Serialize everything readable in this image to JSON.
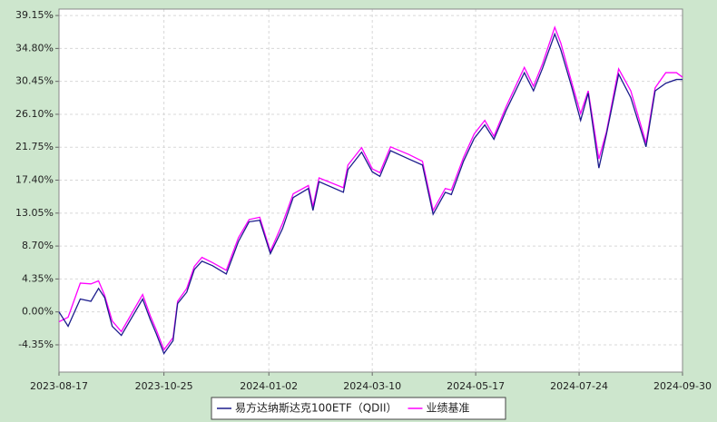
{
  "chart_data": {
    "type": "line",
    "x": [
      "2023-08-17",
      "2023-08-23",
      "2023-08-31",
      "2023-09-07",
      "2023-09-12",
      "2023-09-16",
      "2023-09-21",
      "2023-09-27",
      "2023-10-11",
      "2023-10-16",
      "2023-10-20",
      "2023-10-25",
      "2023-10-31",
      "2023-11-03",
      "2023-11-09",
      "2023-11-14",
      "2023-11-19",
      "2023-11-26",
      "2023-12-05",
      "2023-12-13",
      "2023-12-20",
      "2023-12-27",
      "2024-01-03",
      "2024-01-11",
      "2024-01-18",
      "2024-01-28",
      "2024-01-31",
      "2024-02-04",
      "2024-02-20",
      "2024-02-23",
      "2024-03-03",
      "2024-03-10",
      "2024-03-15",
      "2024-03-22",
      "2024-04-03",
      "2024-04-12",
      "2024-04-19",
      "2024-04-27",
      "2024-05-01",
      "2024-05-09",
      "2024-05-16",
      "2024-05-23",
      "2024-05-29",
      "2024-06-06",
      "2024-06-18",
      "2024-06-24",
      "2024-06-30",
      "2024-07-08",
      "2024-07-12",
      "2024-07-19",
      "2024-07-25",
      "2024-07-30",
      "2024-08-06",
      "2024-08-11",
      "2024-08-19",
      "2024-08-27",
      "2024-09-06",
      "2024-09-12",
      "2024-09-19",
      "2024-09-26",
      "2024-09-30"
    ],
    "series": [
      {
        "name": "易方达纳斯达克100ETF（QDII）",
        "color": "#1c1c8c",
        "values": [
          0.0,
          -1.9,
          1.7,
          1.4,
          3.1,
          1.9,
          -1.9,
          -3.1,
          1.7,
          -1.0,
          -2.9,
          -5.5,
          -3.8,
          1.1,
          2.6,
          5.6,
          6.7,
          6.1,
          5.0,
          9.3,
          11.9,
          12.1,
          7.7,
          11.0,
          15.1,
          16.3,
          13.4,
          17.2,
          15.8,
          18.8,
          21.1,
          18.5,
          17.9,
          21.3,
          20.2,
          19.4,
          12.9,
          15.8,
          15.5,
          19.9,
          22.9,
          24.7,
          22.8,
          26.6,
          31.6,
          29.2,
          32.2,
          36.7,
          34.6,
          29.8,
          25.3,
          28.9,
          19.0,
          23.5,
          31.4,
          28.3,
          21.8,
          29.2,
          30.2,
          30.7,
          30.7
        ]
      },
      {
        "name": "业绩基准",
        "color": "#ff00ff",
        "values": [
          -1.3,
          -0.7,
          3.8,
          3.7,
          4.1,
          2.2,
          -1.2,
          -2.6,
          2.3,
          -0.5,
          -2.4,
          -5.0,
          -3.4,
          1.4,
          3.1,
          6.0,
          7.2,
          6.5,
          5.5,
          9.8,
          12.2,
          12.5,
          8.0,
          11.7,
          15.6,
          16.7,
          13.9,
          17.7,
          16.4,
          19.4,
          21.7,
          18.9,
          18.4,
          21.8,
          20.8,
          19.9,
          13.4,
          16.3,
          16.1,
          20.4,
          23.5,
          25.3,
          23.2,
          27.1,
          32.3,
          29.8,
          32.8,
          37.6,
          35.5,
          30.4,
          26.2,
          29.2,
          20.2,
          23.8,
          32.1,
          29.2,
          22.3,
          29.6,
          31.6,
          31.6,
          31.0
        ]
      }
    ],
    "xlim": [
      "2023-08-17",
      "2024-09-30"
    ],
    "xticks": [
      "2023-08-17",
      "2023-10-25",
      "2024-01-02",
      "2024-03-10",
      "2024-05-17",
      "2024-07-24",
      "2024-09-30"
    ],
    "ylim": [
      -7.95,
      40.0
    ],
    "yticks": [
      {
        "value": 39.15,
        "label": "39.15%"
      },
      {
        "value": 34.8,
        "label": "34.80%"
      },
      {
        "value": 30.45,
        "label": "30.45%"
      },
      {
        "value": 26.1,
        "label": "26.10%"
      },
      {
        "value": 21.75,
        "label": "21.75%"
      },
      {
        "value": 17.4,
        "label": "17.40%"
      },
      {
        "value": 13.05,
        "label": "13.05%"
      },
      {
        "value": 8.7,
        "label": "8.70%"
      },
      {
        "value": 4.35,
        "label": "4.35%"
      },
      {
        "value": 0.0,
        "label": "0.00%"
      },
      {
        "value": -4.35,
        "label": "-4.35%"
      }
    ],
    "grid": true,
    "legend": "bottom"
  }
}
